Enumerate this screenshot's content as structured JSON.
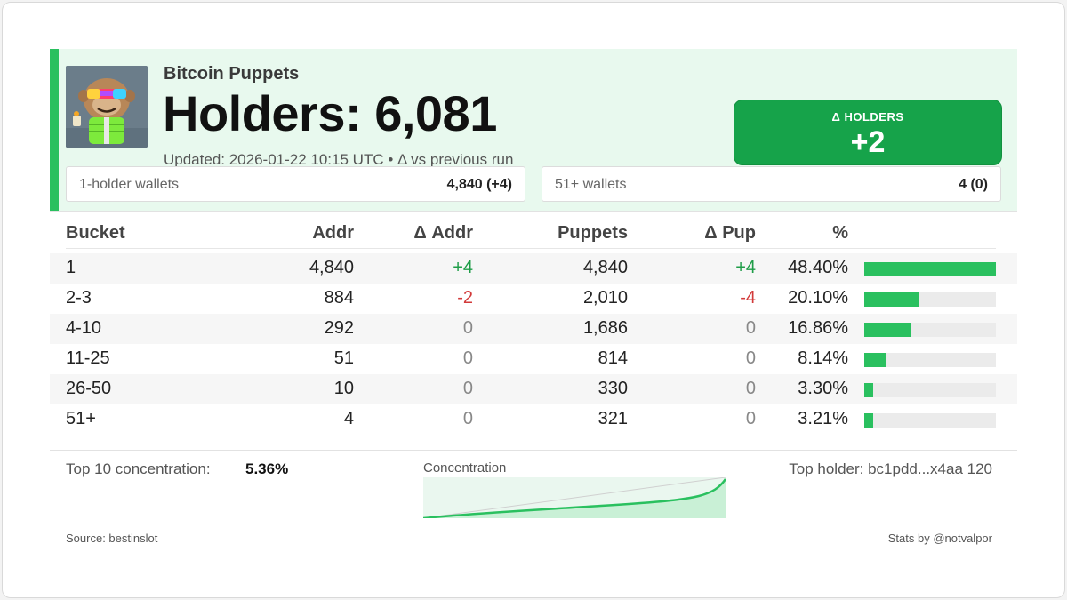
{
  "header": {
    "collection": "Bitcoin Puppets",
    "title": "Holders: 6,081",
    "updated": "Updated: 2026-01-22 10:15 UTC • Δ vs previous run",
    "delta": {
      "label": "Δ HOLDERS",
      "value": "+2"
    },
    "stats": [
      {
        "label": "1-holder wallets",
        "value": "4,840 (+4)"
      },
      {
        "label": "51+ wallets",
        "value": "4 (0)"
      }
    ],
    "avatar_icon": "puppet-monkey-avatar-icon"
  },
  "table": {
    "columns": [
      "Bucket",
      "Addr",
      "Δ Addr",
      "Puppets",
      "Δ Pup",
      "%"
    ],
    "rows": [
      {
        "bucket": "1",
        "addr": "4,840",
        "d_addr": "+4",
        "puppets": "4,840",
        "d_pup": "+4",
        "pct": "48.40%",
        "share": 48.4
      },
      {
        "bucket": "2-3",
        "addr": "884",
        "d_addr": "-2",
        "puppets": "2,010",
        "d_pup": "-4",
        "pct": "20.10%",
        "share": 20.1
      },
      {
        "bucket": "4-10",
        "addr": "292",
        "d_addr": "0",
        "puppets": "1,686",
        "d_pup": "0",
        "pct": "16.86%",
        "share": 16.86
      },
      {
        "bucket": "11-25",
        "addr": "51",
        "d_addr": "0",
        "puppets": "814",
        "d_pup": "0",
        "pct": "8.14%",
        "share": 8.14
      },
      {
        "bucket": "26-50",
        "addr": "10",
        "d_addr": "0",
        "puppets": "330",
        "d_pup": "0",
        "pct": "3.30%",
        "share": 3.3
      },
      {
        "bucket": "51+",
        "addr": "4",
        "d_addr": "0",
        "puppets": "321",
        "d_pup": "0",
        "pct": "3.21%",
        "share": 3.21
      }
    ],
    "bar_scale_max": 48.4
  },
  "footer": {
    "top10_label": "Top 10 concentration:",
    "top10_value": "5.36%",
    "concentration_label": "Concentration",
    "top_holder": "Top holder: bc1pdd...x4aa 120",
    "source": "Source: bestinslot",
    "credit": "Stats by @notvalpor"
  },
  "colors": {
    "accent": "#2ac05f",
    "delta_box": "#16a34a",
    "header_bg": "#e8f9ee",
    "positive": "#1f9d48",
    "negative": "#d23a3a"
  }
}
